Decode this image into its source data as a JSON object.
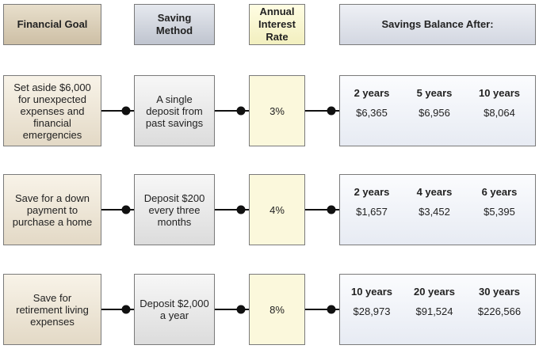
{
  "headers": {
    "goal": "Financial Goal",
    "method": "Saving Method",
    "rate": "Annual Interest Rate",
    "balance": "Savings Balance After:"
  },
  "rows": [
    {
      "goal": "Set aside $6,000 for unexpected expenses and financial emergencies",
      "method": "A single deposit from past savings",
      "rate": "3%",
      "balances": [
        {
          "period": "2 years",
          "amount": "$6,365"
        },
        {
          "period": "5 years",
          "amount": "$6,956"
        },
        {
          "period": "10 years",
          "amount": "$8,064"
        }
      ]
    },
    {
      "goal": "Save for a down payment to purchase a home",
      "method": "Deposit $200 every three months",
      "rate": "4%",
      "balances": [
        {
          "period": "2 years",
          "amount": "$1,657"
        },
        {
          "period": "4 years",
          "amount": "$3,452"
        },
        {
          "period": "6 years",
          "amount": "$5,395"
        }
      ]
    },
    {
      "goal": "Save for retirement living expenses",
      "method": "Deposit $2,000 a year",
      "rate": "8%",
      "balances": [
        {
          "period": "10 years",
          "amount": "$28,973"
        },
        {
          "period": "20 years",
          "amount": "$91,524"
        },
        {
          "period": "30 years",
          "amount": "$226,566"
        }
      ]
    }
  ]
}
